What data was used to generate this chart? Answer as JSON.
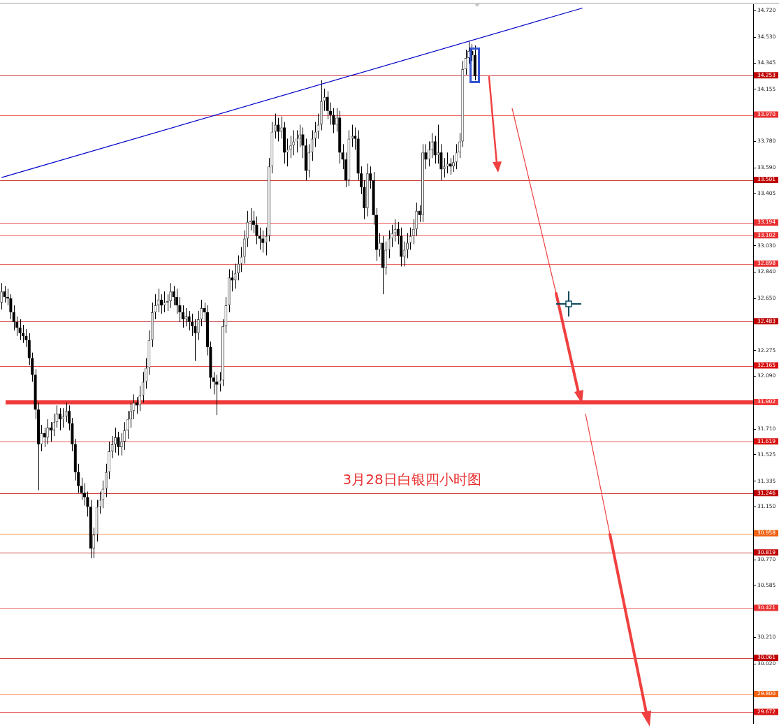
{
  "chart_data": {
    "type": "candlestick",
    "categories": [
      null,
      null,
      null,
      null,
      null,
      null,
      null,
      null,
      null,
      null,
      null,
      null,
      null,
      null,
      null,
      null,
      null,
      null,
      null,
      null,
      null,
      null,
      null,
      null,
      null,
      null,
      null,
      null,
      null,
      null,
      null,
      null,
      null,
      null,
      null,
      null,
      null,
      null,
      null,
      null,
      null,
      null,
      null,
      null,
      null,
      null,
      null,
      null,
      null,
      null,
      null,
      null,
      null,
      null,
      null,
      null,
      null,
      null,
      null,
      null,
      null,
      null,
      null,
      null,
      null,
      null,
      null,
      null,
      null,
      null,
      null,
      null,
      null,
      null,
      null,
      null,
      null,
      null,
      null,
      null,
      null,
      null,
      null,
      null,
      null,
      null,
      null,
      null,
      null,
      null,
      null,
      null,
      null,
      null,
      null,
      null,
      null,
      null,
      null,
      null,
      null,
      null,
      null,
      null,
      null,
      null,
      null,
      null,
      null,
      null,
      null,
      null,
      null,
      null,
      null,
      null,
      null,
      null,
      null,
      null,
      null,
      null,
      null,
      null,
      null,
      null,
      null,
      null,
      null,
      null,
      null,
      null,
      null,
      null,
      null,
      null,
      null,
      null,
      null,
      null,
      null,
      null,
      null,
      null,
      null,
      null,
      null,
      null,
      null,
      null,
      null,
      null,
      null,
      null,
      null,
      null,
      null,
      null,
      null,
      null,
      null,
      null,
      null,
      null,
      null,
      null,
      null,
      null,
      null,
      null,
      null,
      null,
      null,
      null,
      null,
      null,
      null,
      null,
      null,
      null,
      null,
      null,
      null,
      null,
      null,
      null,
      null,
      null,
      null,
      null,
      null,
      null,
      null,
      null,
      null,
      null,
      null,
      null,
      null,
      null,
      null,
      null,
      null,
      null,
      null,
      null,
      null,
      null,
      null,
      null,
      null,
      null,
      null,
      null,
      null,
      null,
      null,
      null,
      null,
      null,
      null,
      null,
      null,
      null,
      null,
      null,
      null,
      null,
      null,
      null,
      null,
      null,
      null,
      null,
      null,
      null,
      null,
      null,
      null,
      null,
      null,
      null,
      null,
      null,
      null
    ],
    "ohlc": [
      [
        32.62,
        32.76,
        32.57,
        32.7
      ],
      [
        32.7,
        32.74,
        32.62,
        32.66
      ],
      [
        32.66,
        32.72,
        32.6,
        32.65
      ],
      [
        32.65,
        32.68,
        32.5,
        32.55
      ],
      [
        32.55,
        32.6,
        32.42,
        32.48
      ],
      [
        32.48,
        32.52,
        32.38,
        32.44
      ],
      [
        32.44,
        32.5,
        32.35,
        32.4
      ],
      [
        32.4,
        32.46,
        32.33,
        32.38
      ],
      [
        32.38,
        32.43,
        32.3,
        32.35
      ],
      [
        32.35,
        32.4,
        32.17,
        32.22
      ],
      [
        32.22,
        32.26,
        32.05,
        32.1
      ],
      [
        32.1,
        32.14,
        31.78,
        31.85
      ],
      [
        31.85,
        31.9,
        31.27,
        31.6
      ],
      [
        31.6,
        31.74,
        31.55,
        31.68
      ],
      [
        31.68,
        31.72,
        31.58,
        31.65
      ],
      [
        31.65,
        31.78,
        31.6,
        31.72
      ],
      [
        31.72,
        31.76,
        31.62,
        31.7
      ],
      [
        31.7,
        31.82,
        31.66,
        31.76
      ],
      [
        31.76,
        31.88,
        31.72,
        31.82
      ],
      [
        31.82,
        31.86,
        31.7,
        31.78
      ],
      [
        31.78,
        31.86,
        31.72,
        31.8
      ],
      [
        31.8,
        31.9,
        31.76,
        31.84
      ],
      [
        31.84,
        31.88,
        31.7,
        31.75
      ],
      [
        31.75,
        31.79,
        31.55,
        31.6
      ],
      [
        31.6,
        31.64,
        31.34,
        31.4
      ],
      [
        31.4,
        31.46,
        31.25,
        31.3
      ],
      [
        31.3,
        31.36,
        31.2,
        31.25
      ],
      [
        31.25,
        31.32,
        31.16,
        31.22
      ],
      [
        31.22,
        31.26,
        31.08,
        31.15
      ],
      [
        31.15,
        31.2,
        30.78,
        30.85
      ],
      [
        30.85,
        31.0,
        30.78,
        30.95
      ],
      [
        30.95,
        31.2,
        30.9,
        31.15
      ],
      [
        31.15,
        31.26,
        31.1,
        31.2
      ],
      [
        31.2,
        31.34,
        31.14,
        31.28
      ],
      [
        31.28,
        31.46,
        31.22,
        31.4
      ],
      [
        31.4,
        31.62,
        31.35,
        31.55
      ],
      [
        31.55,
        31.66,
        31.5,
        31.6
      ],
      [
        31.6,
        31.72,
        31.54,
        31.65
      ],
      [
        31.65,
        31.69,
        31.52,
        31.58
      ],
      [
        31.58,
        31.68,
        31.52,
        31.62
      ],
      [
        31.62,
        31.76,
        31.56,
        31.7
      ],
      [
        31.7,
        31.84,
        31.64,
        31.78
      ],
      [
        31.78,
        31.9,
        31.72,
        31.84
      ],
      [
        31.84,
        31.96,
        31.78,
        31.9
      ],
      [
        31.9,
        31.94,
        31.82,
        31.88
      ],
      [
        31.88,
        32.02,
        31.84,
        31.95
      ],
      [
        31.95,
        32.12,
        31.9,
        32.05
      ],
      [
        32.05,
        32.22,
        32.0,
        32.15
      ],
      [
        32.15,
        32.42,
        32.1,
        32.35
      ],
      [
        32.35,
        32.62,
        32.3,
        32.55
      ],
      [
        32.55,
        32.68,
        32.5,
        32.6
      ],
      [
        32.6,
        32.72,
        32.55,
        32.64
      ],
      [
        32.64,
        32.68,
        32.54,
        32.6
      ],
      [
        32.6,
        32.7,
        32.55,
        32.62
      ],
      [
        32.62,
        32.68,
        32.56,
        32.63
      ],
      [
        32.63,
        32.76,
        32.58,
        32.7
      ],
      [
        32.7,
        32.74,
        32.6,
        32.66
      ],
      [
        32.66,
        32.72,
        32.54,
        32.6
      ],
      [
        32.6,
        32.66,
        32.48,
        32.55
      ],
      [
        32.55,
        32.6,
        32.44,
        32.5
      ],
      [
        32.5,
        32.58,
        32.45,
        32.52
      ],
      [
        32.52,
        32.56,
        32.42,
        32.48
      ],
      [
        32.48,
        32.54,
        32.38,
        32.45
      ],
      [
        32.45,
        32.5,
        32.2,
        32.4
      ],
      [
        32.4,
        32.56,
        32.35,
        32.5
      ],
      [
        32.5,
        32.64,
        32.45,
        32.58
      ],
      [
        32.58,
        32.62,
        32.48,
        32.55
      ],
      [
        32.55,
        32.6,
        32.24,
        32.3
      ],
      [
        32.3,
        32.34,
        32.0,
        32.08
      ],
      [
        32.08,
        32.12,
        31.96,
        32.05
      ],
      [
        32.05,
        32.1,
        31.81,
        32.03
      ],
      [
        32.03,
        32.12,
        31.98,
        32.06
      ],
      [
        32.06,
        32.5,
        32.02,
        32.45
      ],
      [
        32.45,
        32.66,
        32.4,
        32.6
      ],
      [
        32.6,
        32.86,
        32.55,
        32.8
      ],
      [
        32.8,
        32.85,
        32.7,
        32.78
      ],
      [
        32.78,
        32.9,
        32.72,
        32.83
      ],
      [
        32.83,
        32.96,
        32.78,
        32.9
      ],
      [
        32.9,
        33.02,
        32.84,
        32.95
      ],
      [
        32.95,
        33.14,
        32.9,
        33.08
      ],
      [
        33.08,
        33.28,
        33.02,
        33.2
      ],
      [
        33.2,
        33.3,
        33.14,
        33.21
      ],
      [
        33.21,
        33.28,
        33.12,
        33.18
      ],
      [
        33.18,
        33.24,
        33.04,
        33.1
      ],
      [
        33.1,
        33.16,
        33.0,
        33.08
      ],
      [
        33.08,
        33.14,
        32.98,
        33.05
      ],
      [
        33.05,
        33.16,
        32.96,
        33.1
      ],
      [
        33.1,
        33.66,
        33.06,
        33.6
      ],
      [
        33.6,
        33.92,
        33.55,
        33.85
      ],
      [
        33.85,
        33.98,
        33.8,
        33.9
      ],
      [
        33.9,
        33.95,
        33.78,
        33.85
      ],
      [
        33.85,
        33.96,
        33.8,
        33.88
      ],
      [
        33.88,
        33.92,
        33.62,
        33.7
      ],
      [
        33.7,
        33.8,
        33.6,
        33.72
      ],
      [
        33.72,
        33.82,
        33.66,
        33.75
      ],
      [
        33.75,
        33.86,
        33.68,
        33.78
      ],
      [
        33.78,
        33.86,
        33.7,
        33.8
      ],
      [
        33.8,
        33.9,
        33.74,
        33.83
      ],
      [
        33.83,
        33.88,
        33.66,
        33.75
      ],
      [
        33.75,
        33.8,
        33.5,
        33.57
      ],
      [
        33.57,
        33.76,
        33.52,
        33.7
      ],
      [
        33.7,
        33.86,
        33.64,
        33.8
      ],
      [
        33.8,
        33.92,
        33.74,
        33.85
      ],
      [
        33.85,
        33.98,
        33.8,
        33.9
      ],
      [
        33.9,
        34.22,
        33.86,
        34.07
      ],
      [
        34.07,
        34.16,
        34.0,
        34.1
      ],
      [
        34.1,
        34.14,
        33.94,
        34.0
      ],
      [
        34.0,
        34.06,
        33.9,
        33.97
      ],
      [
        33.97,
        34.02,
        33.84,
        33.9
      ],
      [
        33.9,
        34.02,
        33.85,
        33.95
      ],
      [
        33.95,
        34.0,
        33.62,
        33.7
      ],
      [
        33.7,
        33.76,
        33.58,
        33.65
      ],
      [
        33.65,
        33.7,
        33.45,
        33.5
      ],
      [
        33.5,
        33.86,
        33.46,
        33.8
      ],
      [
        33.8,
        33.9,
        33.74,
        33.82
      ],
      [
        33.82,
        33.88,
        33.72,
        33.8
      ],
      [
        33.8,
        33.86,
        33.5,
        33.55
      ],
      [
        33.55,
        33.6,
        33.4,
        33.45
      ],
      [
        33.45,
        33.5,
        33.22,
        33.3
      ],
      [
        33.3,
        33.62,
        33.24,
        33.55
      ],
      [
        33.55,
        33.6,
        33.44,
        33.5
      ],
      [
        33.5,
        33.56,
        33.18,
        33.25
      ],
      [
        33.25,
        33.3,
        32.92,
        33.0
      ],
      [
        33.0,
        33.12,
        32.95,
        33.05
      ],
      [
        33.05,
        33.1,
        32.68,
        32.87
      ],
      [
        32.87,
        33.06,
        32.82,
        33.0
      ],
      [
        33.0,
        33.14,
        32.94,
        33.08
      ],
      [
        33.08,
        33.18,
        33.02,
        33.12
      ],
      [
        33.12,
        33.22,
        33.06,
        33.15
      ],
      [
        33.15,
        33.2,
        33.04,
        33.1
      ],
      [
        33.1,
        33.16,
        32.88,
        32.95
      ],
      [
        32.95,
        33.06,
        32.88,
        33.0
      ],
      [
        33.0,
        33.12,
        32.94,
        33.05
      ],
      [
        33.05,
        33.16,
        33.0,
        33.1
      ],
      [
        33.1,
        33.22,
        33.04,
        33.15
      ],
      [
        33.15,
        33.34,
        33.1,
        33.28
      ],
      [
        33.28,
        33.32,
        33.2,
        33.25
      ],
      [
        33.25,
        33.76,
        33.2,
        33.7
      ],
      [
        33.7,
        33.76,
        33.58,
        33.65
      ],
      [
        33.65,
        33.78,
        33.6,
        33.72
      ],
      [
        33.72,
        33.84,
        33.66,
        33.78
      ],
      [
        33.78,
        33.82,
        33.62,
        33.68
      ],
      [
        33.68,
        33.9,
        33.62,
        33.7
      ],
      [
        33.7,
        33.76,
        33.5,
        33.58
      ],
      [
        33.58,
        33.66,
        33.52,
        33.6
      ],
      [
        33.6,
        33.7,
        33.55,
        33.62
      ],
      [
        33.62,
        33.66,
        33.54,
        33.6
      ],
      [
        33.6,
        33.68,
        33.56,
        33.63
      ],
      [
        33.63,
        33.76,
        33.58,
        33.7
      ],
      [
        33.7,
        33.84,
        33.66,
        33.78
      ],
      [
        33.78,
        34.36,
        33.74,
        34.3
      ],
      [
        34.3,
        34.44,
        34.26,
        34.38
      ],
      [
        34.38,
        34.5,
        34.34,
        34.43
      ],
      [
        34.43,
        34.48,
        34.36,
        34.4
      ],
      [
        34.4,
        34.47,
        34.22,
        34.25
      ],
      null,
      null,
      null,
      null,
      null,
      null,
      null,
      null,
      null,
      null,
      null,
      null,
      null,
      null,
      null,
      null,
      null,
      null,
      null,
      null,
      null,
      null,
      null,
      null,
      null,
      null,
      null,
      null,
      null,
      null,
      null,
      null,
      null,
      null,
      null,
      null,
      null,
      null,
      null,
      null,
      null,
      null,
      null,
      null,
      null,
      null,
      null,
      null,
      null,
      null,
      null,
      null,
      null,
      null,
      null,
      null,
      null,
      null,
      null,
      null,
      null,
      null,
      null,
      null,
      null,
      null,
      null,
      null,
      null,
      null,
      null,
      null,
      null,
      null,
      null,
      null,
      null,
      null,
      null,
      null,
      null,
      null,
      null,
      null,
      null,
      null,
      null,
      null,
      null,
      null
    ],
    "series": [
      {
        "type": "line",
        "color": "#0000c8",
        "values": [
          33.52,
          null,
          null,
          null,
          null,
          null,
          null,
          null,
          null,
          null,
          null,
          null,
          null,
          null,
          null,
          null,
          null,
          null,
          null,
          null,
          null,
          null,
          null,
          null,
          null,
          null,
          null,
          null,
          null,
          null,
          null,
          null,
          null,
          null,
          null,
          null,
          null,
          null,
          null,
          null,
          null,
          null,
          null,
          null,
          null,
          null,
          null,
          null,
          null,
          null,
          null,
          null,
          null,
          null,
          null,
          null,
          null,
          null,
          null,
          null,
          null,
          null,
          null,
          null,
          null,
          null,
          null,
          null,
          null,
          null,
          null,
          null,
          null,
          null,
          null,
          null,
          null,
          null,
          null,
          null,
          null,
          null,
          null,
          null,
          null,
          null,
          null,
          null,
          null,
          null,
          null,
          null,
          null,
          null,
          null,
          null,
          null,
          null,
          null,
          null,
          null,
          null,
          null,
          null,
          null,
          null,
          null,
          null,
          null,
          null,
          null,
          null,
          null,
          null,
          null,
          null,
          null,
          null,
          null,
          null,
          null,
          null,
          null,
          null,
          null,
          null,
          null,
          null,
          null,
          null,
          null,
          null,
          null,
          null,
          null,
          null,
          null,
          null,
          null,
          null,
          null,
          null,
          null,
          null,
          null,
          null,
          null,
          null,
          null,
          null,
          null,
          null,
          null,
          null,
          null,
          null,
          null,
          null,
          null,
          null,
          null,
          null,
          null,
          null,
          null,
          null,
          null,
          null,
          null,
          null,
          null,
          null,
          null,
          null,
          null,
          null,
          null,
          null,
          null,
          null,
          null,
          null,
          null,
          null,
          null,
          null,
          null,
          null,
          null,
          34.74,
          null,
          null,
          null,
          null,
          null,
          null,
          null,
          null,
          null,
          null,
          null,
          null,
          null,
          null,
          null,
          null,
          null,
          null,
          null,
          null,
          null,
          null,
          null,
          null,
          null,
          null,
          null,
          null,
          null,
          null,
          null,
          null,
          null,
          null,
          null,
          null,
          null,
          null,
          null,
          null,
          null,
          null,
          null,
          null,
          null,
          null,
          null,
          null,
          null,
          null,
          null,
          null,
          null,
          null,
          null
        ]
      }
    ],
    "ylim": [
      29.591,
      34.765
    ],
    "yticks": [
      {
        "value": 34.72,
        "label": "34.720"
      },
      {
        "value": 34.53,
        "label": "34.530"
      },
      {
        "value": 34.345,
        "label": "34.345"
      },
      {
        "value": 34.155,
        "label": "34.155"
      },
      {
        "value": 33.78,
        "label": "33.780"
      },
      {
        "value": 33.59,
        "label": "33.590"
      },
      {
        "value": 33.405,
        "label": "33.405"
      },
      {
        "value": 33.03,
        "label": "33.030"
      },
      {
        "value": 32.84,
        "label": "32.840"
      },
      {
        "value": 32.65,
        "label": "32.650"
      },
      {
        "value": 32.275,
        "label": "32.275"
      },
      {
        "value": 32.09,
        "label": "32.090"
      },
      {
        "value": 31.71,
        "label": "31.710"
      },
      {
        "value": 31.525,
        "label": "31.525"
      },
      {
        "value": 31.335,
        "label": "31.335"
      },
      {
        "value": 31.15,
        "label": "31.150"
      },
      {
        "value": 30.77,
        "label": "30.770"
      },
      {
        "value": 30.585,
        "label": "30.585"
      },
      {
        "value": 30.21,
        "label": "30.210"
      },
      {
        "value": 30.02,
        "label": "30.020"
      }
    ],
    "tick_labels": "y",
    "ref_lines": [
      {
        "axis": "y",
        "value": 34.253,
        "label": "34.253",
        "color": "#c00000"
      },
      {
        "axis": "y",
        "value": 33.97,
        "label": "33.970",
        "color": "#e83030"
      },
      {
        "axis": "y",
        "value": 33.501,
        "label": "33.501",
        "color": "#c00000"
      },
      {
        "axis": "y",
        "value": 33.194,
        "label": "33.194",
        "color": "#e83030"
      },
      {
        "axis": "y",
        "value": 33.102,
        "label": "33.102",
        "color": "#e83030"
      },
      {
        "axis": "y",
        "value": 32.898,
        "label": "32.898",
        "color": "#e83030"
      },
      {
        "axis": "y",
        "value": 32.483,
        "label": "32.483",
        "color": "#c00000"
      },
      {
        "axis": "y",
        "value": 32.165,
        "label": "32.165",
        "color": "#d81010"
      },
      {
        "axis": "y",
        "value": 31.619,
        "label": "31.619",
        "color": "#d81010"
      },
      {
        "axis": "y",
        "value": 31.246,
        "label": "31.246",
        "color": "#c00000"
      },
      {
        "axis": "y",
        "value": 30.958,
        "label": "30.958",
        "color": "#f06010"
      },
      {
        "axis": "y",
        "value": 30.819,
        "label": "30.819",
        "color": "#c00000"
      },
      {
        "axis": "y",
        "value": 30.421,
        "label": "30.421",
        "color": "#e83030"
      },
      {
        "axis": "y",
        "value": 30.061,
        "label": "30.061",
        "color": "#c00000"
      },
      {
        "axis": "y",
        "value": 29.8,
        "label": "29.800",
        "color": "#f06010"
      },
      {
        "axis": "y",
        "value": 29.672,
        "label": "29.672",
        "color": "#d81010"
      }
    ],
    "bands": [
      {
        "axis": "y",
        "from": 31.888,
        "to": 31.916,
        "label": "31.902",
        "color": "#f03a3a"
      }
    ],
    "annotations": [
      "3月28日白银四小时图"
    ]
  }
}
